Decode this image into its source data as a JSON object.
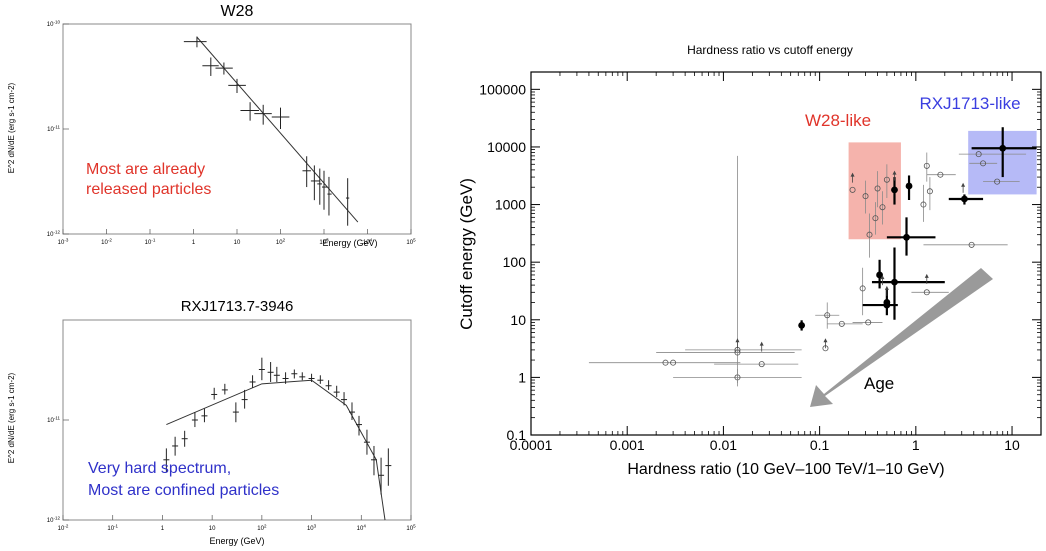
{
  "chart_data": [
    {
      "type": "scatter",
      "title": "W28",
      "xlabel": "Energy (GeV)",
      "ylabel": "E^2 dN/dE (erg s-1 cm-2)",
      "xscale": "log",
      "yscale": "log",
      "xlim": [
        0.001,
        100000
      ],
      "ylim": [
        1e-12,
        1e-10
      ],
      "grid": false,
      "x_ticks": [
        "10^-3",
        "10^-2",
        "10^-1",
        "1",
        "10",
        "10^2",
        "10^3",
        "10^4",
        "10^5"
      ],
      "y_ticks": [
        "10^-10",
        "10^-11",
        "10^-12"
      ],
      "annotation": "Most are already\nreleased particles",
      "annotation_color": "#e0342a",
      "points": [
        {
          "x": 1.2,
          "y": 6.8e-11,
          "xerr": [
            0.6,
            2.0
          ],
          "yerr": [
            6e-11,
            7.6e-11
          ]
        },
        {
          "x": 2.5,
          "y": 4e-11,
          "xerr": [
            1.6,
            3.8
          ],
          "yerr": [
            3.2e-11,
            4.8e-11
          ]
        },
        {
          "x": 5.0,
          "y": 3.8e-11,
          "xerr": [
            3.2,
            8.0
          ],
          "yerr": [
            3.3e-11,
            4.3e-11
          ]
        },
        {
          "x": 10,
          "y": 2.6e-11,
          "xerr": [
            6.3,
            16
          ],
          "yerr": [
            2.2e-11,
            3e-11
          ]
        },
        {
          "x": 20,
          "y": 1.5e-11,
          "xerr": [
            12,
            32
          ],
          "yerr": [
            1.2e-11,
            1.8e-11
          ]
        },
        {
          "x": 40,
          "y": 1.4e-11,
          "xerr": [
            25,
            63
          ],
          "yerr": [
            1.1e-11,
            1.7e-11
          ]
        },
        {
          "x": 100,
          "y": 1.3e-11,
          "xerr": [
            63,
            160
          ],
          "yerr": [
            1e-11,
            1.6e-11
          ]
        },
        {
          "x": 400,
          "y": 4e-12,
          "xerr": [
            320,
            500
          ],
          "yerr": [
            2.8e-12,
            5.5e-12
          ]
        },
        {
          "x": 600,
          "y": 3.2e-12,
          "xerr": [
            500,
            800
          ],
          "yerr": [
            2.1e-12,
            4.5e-12
          ]
        },
        {
          "x": 800,
          "y": 3e-12,
          "xerr": [
            700,
            900
          ],
          "yerr": [
            1.9e-12,
            4.2e-12
          ]
        },
        {
          "x": 1000,
          "y": 2.8e-12,
          "xerr": [
            900,
            1200
          ],
          "yerr": [
            1.7e-12,
            4e-12
          ]
        },
        {
          "x": 1300,
          "y": 2.4e-12,
          "xerr": [
            1200,
            1500
          ],
          "yerr": [
            1.5e-12,
            3.5e-12
          ]
        },
        {
          "x": 3500,
          "y": 2.2e-12,
          "xerr": [
            3200,
            3800
          ],
          "yerr": [
            1.2e-12,
            3.4e-12
          ]
        }
      ],
      "model": [
        [
          1.2,
          7.5e-11
        ],
        [
          6000,
          1.3e-12
        ]
      ]
    },
    {
      "type": "scatter",
      "title": "RXJ1713.7-3946",
      "xlabel": "Energy (GeV)",
      "ylabel": "E^2 dN/dE (erg s-1 cm-2)",
      "xscale": "log",
      "yscale": "log",
      "xlim": [
        0.01,
        100000
      ],
      "ylim": [
        1e-12,
        1e-10
      ],
      "grid": false,
      "x_ticks": [
        "10^-2",
        "10^-1",
        "1",
        "10",
        "10^2",
        "10^3",
        "10^4",
        "10^5"
      ],
      "y_ticks": [
        "10^-11",
        "10^-12"
      ],
      "annotation": "Very hard spectrum,\nMost are confined particles",
      "annotation_color": "#2f31c9",
      "points": [
        {
          "x": 1.2,
          "y": 4e-12,
          "yerr": [
            3e-12,
            5.2e-12
          ]
        },
        {
          "x": 1.8,
          "y": 5.5e-12,
          "yerr": [
            4.4e-12,
            6.8e-12
          ]
        },
        {
          "x": 2.8,
          "y": 6.5e-12,
          "yerr": [
            5.4e-12,
            7.8e-12
          ]
        },
        {
          "x": 4.5,
          "y": 1e-11,
          "yerr": [
            8.5e-12,
            1.2e-11
          ]
        },
        {
          "x": 7,
          "y": 1.1e-11,
          "yerr": [
            9.5e-12,
            1.3e-11
          ]
        },
        {
          "x": 11,
          "y": 1.8e-11,
          "yerr": [
            1.6e-11,
            2.1e-11
          ]
        },
        {
          "x": 18,
          "y": 2e-11,
          "yerr": [
            1.8e-11,
            2.3e-11
          ]
        },
        {
          "x": 30,
          "y": 1.2e-11,
          "yerr": [
            9.5e-12,
            1.5e-11
          ]
        },
        {
          "x": 45,
          "y": 1.6e-11,
          "yerr": [
            1.3e-11,
            2e-11
          ]
        },
        {
          "x": 65,
          "y": 2.4e-11,
          "yerr": [
            2.1e-11,
            2.8e-11
          ]
        },
        {
          "x": 100,
          "y": 3.2e-11,
          "yerr": [
            2.5e-11,
            4.2e-11
          ]
        },
        {
          "x": 150,
          "y": 3e-11,
          "yerr": [
            2.4e-11,
            3.8e-11
          ]
        },
        {
          "x": 200,
          "y": 2.8e-11,
          "yerr": [
            2.4e-11,
            3.4e-11
          ]
        },
        {
          "x": 300,
          "y": 2.6e-11,
          "yerr": [
            2.3e-11,
            3e-11
          ]
        },
        {
          "x": 450,
          "y": 2.9e-11,
          "yerr": [
            2.6e-11,
            3.2e-11
          ]
        },
        {
          "x": 650,
          "y": 2.7e-11,
          "yerr": [
            2.5e-11,
            3e-11
          ]
        },
        {
          "x": 1000,
          "y": 2.6e-11,
          "yerr": [
            2.4e-11,
            2.9e-11
          ]
        },
        {
          "x": 1500,
          "y": 2.5e-11,
          "yerr": [
            2.3e-11,
            2.8e-11
          ]
        },
        {
          "x": 2200,
          "y": 2.2e-11,
          "yerr": [
            2e-11,
            2.5e-11
          ]
        },
        {
          "x": 3200,
          "y": 1.9e-11,
          "yerr": [
            1.7e-11,
            2.2e-11
          ]
        },
        {
          "x": 4500,
          "y": 1.6e-11,
          "yerr": [
            1.4e-11,
            1.9e-11
          ]
        },
        {
          "x": 6500,
          "y": 1.2e-11,
          "yerr": [
            1e-11,
            1.5e-11
          ]
        },
        {
          "x": 9000,
          "y": 9e-12,
          "yerr": [
            7e-12,
            1.1e-11
          ]
        },
        {
          "x": 13000,
          "y": 6e-12,
          "yerr": [
            4.5e-12,
            8e-12
          ]
        },
        {
          "x": 18000,
          "y": 4e-12,
          "yerr": [
            2.8e-12,
            5.5e-12
          ]
        },
        {
          "x": 25000,
          "y": 2.8e-12,
          "yerr": [
            1.8e-12,
            4.2e-12
          ]
        },
        {
          "x": 35000,
          "y": 3.5e-12,
          "yerr": [
            2.2e-12,
            5.2e-12
          ]
        }
      ],
      "model": [
        [
          1.2,
          9e-12
        ],
        [
          100,
          2.3e-11
        ],
        [
          1000,
          2.5e-11
        ],
        [
          5000,
          1.4e-11
        ],
        [
          20000,
          4e-12
        ],
        [
          30000,
          1e-12
        ]
      ]
    },
    {
      "type": "scatter",
      "title": "Hardness ratio vs cutoff energy",
      "xlabel": "Hardness ratio (10 GeV–100 TeV/1–10 GeV)",
      "ylabel": "Cutoff energy (GeV)",
      "xscale": "log",
      "yscale": "log",
      "xlim": [
        0.0001,
        20
      ],
      "ylim": [
        0.1,
        200000
      ],
      "grid": false,
      "x_ticks": [
        "0.0001",
        "0.001",
        "0.01",
        "0.1",
        "1",
        "10"
      ],
      "y_ticks": [
        "0.1",
        "1",
        "10",
        "100",
        "1000",
        "10000",
        "100000"
      ],
      "regions": [
        {
          "label": "W28-like",
          "color": "#e0342a",
          "fill": "#f08a80",
          "x": [
            0.2,
            0.7
          ],
          "y": [
            250,
            12000
          ]
        },
        {
          "label": "RXJ1713-like",
          "color": "#3a3ee0",
          "fill": "#8f95f2",
          "x": [
            3.5,
            18
          ],
          "y": [
            1500,
            19000
          ]
        }
      ],
      "arrow_label": "Age",
      "points_filled": [
        {
          "x": 0.065,
          "y": 8,
          "yerr": [
            6.5,
            9.8
          ]
        },
        {
          "x": 0.6,
          "y": 1800,
          "yerr": [
            1000,
            3000
          ]
        },
        {
          "x": 0.85,
          "y": 2100,
          "yerr": [
            1200,
            3200
          ]
        },
        {
          "x": 0.8,
          "y": 270,
          "xerr": [
            0.5,
            1.6
          ],
          "yerr": [
            130,
            600
          ]
        },
        {
          "x": 0.42,
          "y": 60,
          "yerr": [
            35,
            110
          ]
        },
        {
          "x": 0.5,
          "y": 20,
          "yerr": [
            12,
            35
          ]
        },
        {
          "x": 0.6,
          "y": 45,
          "xerr": [
            0.35,
            2.0
          ],
          "yerr": [
            10,
            180
          ]
        },
        {
          "x": 3.2,
          "y": 1250,
          "xerr": [
            2.2,
            5.0
          ],
          "yerr": [
            1000,
            1500
          ]
        },
        {
          "x": 8,
          "y": 9500,
          "xerr": [
            3.8,
            18
          ],
          "yerr": [
            3000,
            22000
          ]
        },
        {
          "x": 0.5,
          "y": 18,
          "xerr": [
            0.28,
            0.65
          ]
        }
      ],
      "points_open": [
        {
          "x": 0.0025,
          "y": 1.8,
          "xerr": [
            0.0004,
            0.015
          ]
        },
        {
          "x": 0.003,
          "y": 1.8
        },
        {
          "x": 0.014,
          "y": 1.0,
          "xerr": [
            0.003,
            0.065
          ],
          "yerr": [
            0.7,
            1.4
          ]
        },
        {
          "x": 0.014,
          "y": 3,
          "xerr": [
            0.004,
            0.065
          ],
          "yerr": [
            0.8,
            7000
          ]
        },
        {
          "x": 0.014,
          "y": 2.7,
          "xerr": [
            0.002,
            0.055
          ]
        },
        {
          "x": 0.025,
          "y": 1.7,
          "xerr": [
            0.008,
            0.06
          ]
        },
        {
          "x": 0.115,
          "y": 3.2
        },
        {
          "x": 0.12,
          "y": 12,
          "xerr": [
            0.09,
            0.16
          ],
          "yerr": [
            7,
            20
          ]
        },
        {
          "x": 0.17,
          "y": 8.5,
          "xerr": [
            0.12,
            0.28
          ]
        },
        {
          "x": 0.28,
          "y": 35,
          "yerr": [
            12,
            80
          ]
        },
        {
          "x": 0.32,
          "y": 9,
          "xerr": [
            0.22,
            0.45
          ]
        },
        {
          "x": 0.22,
          "y": 1800
        },
        {
          "x": 0.3,
          "y": 1400,
          "yerr": [
            700,
            2600
          ]
        },
        {
          "x": 0.33,
          "y": 300,
          "yerr": [
            120,
            700
          ]
        },
        {
          "x": 0.38,
          "y": 580,
          "yerr": [
            300,
            1100
          ]
        },
        {
          "x": 0.4,
          "y": 1900,
          "yerr": [
            900,
            3800
          ]
        },
        {
          "x": 0.45,
          "y": 900,
          "yerr": [
            450,
            1700
          ]
        },
        {
          "x": 0.5,
          "y": 2700,
          "yerr": [
            1300,
            5000
          ]
        },
        {
          "x": 1.2,
          "y": 1000,
          "yerr": [
            500,
            2200
          ]
        },
        {
          "x": 1.3,
          "y": 4700,
          "yerr": [
            2500,
            8000
          ]
        },
        {
          "x": 1.4,
          "y": 1700,
          "yerr": [
            800,
            3000
          ]
        },
        {
          "x": 1.3,
          "y": 30,
          "xerr": [
            0.9,
            2.2
          ]
        },
        {
          "x": 1.8,
          "y": 3300,
          "xerr": [
            1.3,
            2.6
          ]
        },
        {
          "x": 3.8,
          "y": 200,
          "xerr": [
            1.2,
            9
          ]
        },
        {
          "x": 5,
          "y": 5200,
          "xerr": [
            3.6,
            7
          ]
        },
        {
          "x": 4.5,
          "y": 7500,
          "xerr": [
            2.8,
            14
          ]
        },
        {
          "x": 7,
          "y": 2500,
          "xerr": [
            5,
            12
          ]
        }
      ],
      "lower_limits": [
        {
          "x": 0.014,
          "y": 3.2
        },
        {
          "x": 0.025,
          "y": 2.8
        },
        {
          "x": 0.115,
          "y": 3.2
        },
        {
          "x": 0.22,
          "y": 2400
        },
        {
          "x": 0.45,
          "y": 40
        },
        {
          "x": 0.5,
          "y": 26
        },
        {
          "x": 0.6,
          "y": 2600
        },
        {
          "x": 1.3,
          "y": 42
        },
        {
          "x": 3.1,
          "y": 1600
        }
      ]
    }
  ]
}
